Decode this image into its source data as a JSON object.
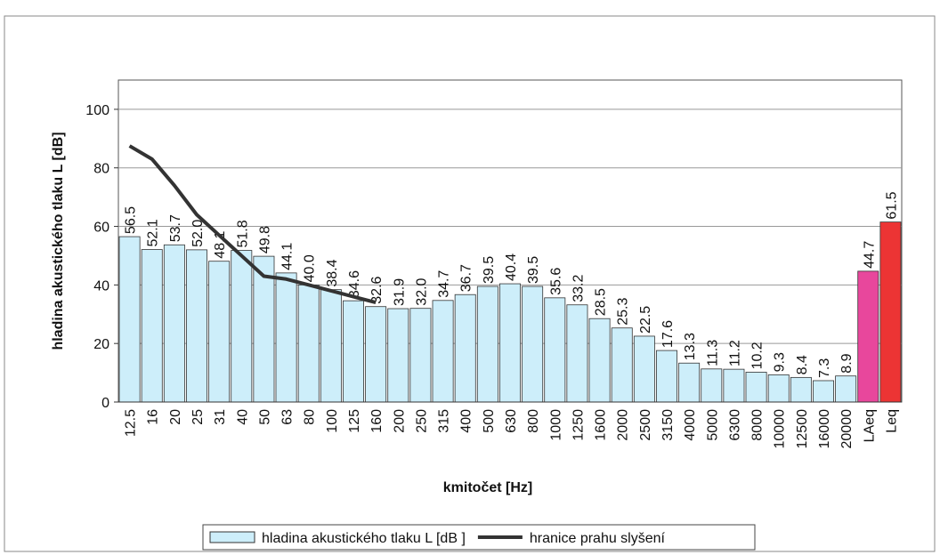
{
  "chart_data": {
    "type": "bar",
    "x_label": "kmitočet [Hz]",
    "y_label": "hladina akustického tlaku L [dB]",
    "categories": [
      "12.5",
      "16",
      "20",
      "25",
      "31",
      "40",
      "50",
      "63",
      "80",
      "100",
      "125",
      "160",
      "200",
      "250",
      "315",
      "400",
      "500",
      "630",
      "800",
      "1000",
      "1250",
      "1600",
      "2000",
      "2500",
      "3150",
      "4000",
      "5000",
      "6300",
      "8000",
      "10000",
      "12500",
      "16000",
      "20000",
      "LAeq",
      "Leq"
    ],
    "series": [
      {
        "name": "hladina akustického tlaku L [dB ]",
        "type": "bar",
        "color": "#cdeefa",
        "values": [
          56.5,
          52.1,
          53.7,
          52.0,
          48.1,
          51.8,
          49.8,
          44.1,
          40.0,
          38.4,
          34.6,
          32.6,
          31.9,
          32.0,
          34.7,
          36.7,
          39.5,
          40.4,
          39.5,
          35.6,
          33.2,
          28.5,
          25.3,
          22.5,
          17.6,
          13.3,
          11.3,
          11.2,
          10.2,
          9.3,
          8.4,
          7.3,
          8.9,
          44.7,
          61.5
        ],
        "value_labels": [
          "56.5",
          "52.1",
          "53.7",
          "52.0",
          "48.1",
          "51.8",
          "49.8",
          "44.1",
          "40.0",
          "38.4",
          "34.6",
          "32.6",
          "31.9",
          "32.0",
          "34.7",
          "36.7",
          "39.5",
          "40.4",
          "39.5",
          "35.6",
          "33.2",
          "28.5",
          "25.3",
          "22.5",
          "17.6",
          "13.3",
          "11.3",
          "11.2",
          "10.2",
          "9.3",
          "8.4",
          "7.3",
          "8.9",
          "44.7",
          "61.5"
        ],
        "colors": [
          "#cdeefa",
          "#cdeefa",
          "#cdeefa",
          "#cdeefa",
          "#cdeefa",
          "#cdeefa",
          "#cdeefa",
          "#cdeefa",
          "#cdeefa",
          "#cdeefa",
          "#cdeefa",
          "#cdeefa",
          "#cdeefa",
          "#cdeefa",
          "#cdeefa",
          "#cdeefa",
          "#cdeefa",
          "#cdeefa",
          "#cdeefa",
          "#cdeefa",
          "#cdeefa",
          "#cdeefa",
          "#cdeefa",
          "#cdeefa",
          "#cdeefa",
          "#cdeefa",
          "#cdeefa",
          "#cdeefa",
          "#cdeefa",
          "#cdeefa",
          "#cdeefa",
          "#cdeefa",
          "#cdeefa",
          "#e8479c",
          "#ec3434"
        ]
      },
      {
        "name": "hranice prahu slyšení",
        "type": "line",
        "color": "#333333",
        "values": [
          87.5,
          83,
          74,
          64,
          57,
          50,
          43,
          42,
          40,
          38,
          36,
          34,
          null,
          null,
          null,
          null,
          null,
          null,
          null,
          null,
          null,
          null,
          null,
          null,
          null,
          null,
          null,
          null,
          null,
          null,
          null,
          null,
          null,
          null,
          null
        ]
      }
    ],
    "ylim": [
      0,
      110
    ],
    "yticks": [
      0,
      20,
      40,
      60,
      80,
      100
    ],
    "grid": true
  }
}
